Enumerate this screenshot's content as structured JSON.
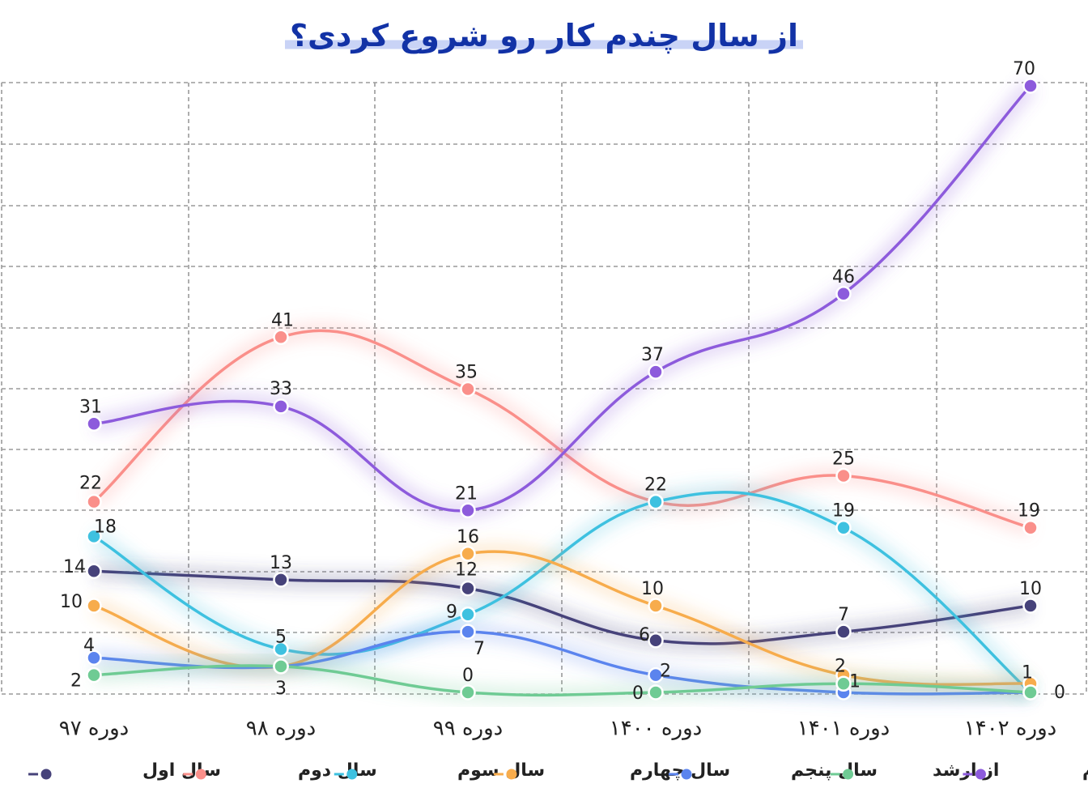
{
  "chart_data": {
    "type": "line",
    "title": "از سال چندم کار رو شروع کردی؟",
    "categories": [
      "دوره ۹۷",
      "دوره ۹۸",
      "دوره ۹۹",
      "دوره ۱۴۰۰",
      "دوره ۱۴۰۱",
      "دوره ۱۴۰۲"
    ],
    "ylim": [
      0,
      70
    ],
    "grid": true,
    "legend_position": "bottom",
    "series": [
      {
        "name": "سال اول",
        "color": "#46427a",
        "values": [
          14,
          13,
          12,
          6,
          7,
          10
        ]
      },
      {
        "name": "سال دوم",
        "color": "#fa8f8a",
        "values": [
          22,
          41,
          35,
          22,
          25,
          19
        ]
      },
      {
        "name": "سال سوم",
        "color": "#3ec1e0",
        "values": [
          18,
          5,
          9,
          22,
          19,
          0
        ]
      },
      {
        "name": "سال چهارم",
        "color": "#f7ac4c",
        "values": [
          10,
          3,
          16,
          10,
          2,
          1
        ]
      },
      {
        "name": "سال پنجم",
        "color": "#5b84ee",
        "values": [
          4,
          3,
          7,
          2,
          0,
          0
        ]
      },
      {
        "name": "از ارشد",
        "color": "#6fcb94",
        "values": [
          2,
          3,
          0,
          0,
          1,
          0
        ]
      },
      {
        "name": "کار نکردم",
        "color": "#8d5bdc",
        "values": [
          31,
          33,
          21,
          37,
          46,
          70
        ]
      }
    ]
  }
}
